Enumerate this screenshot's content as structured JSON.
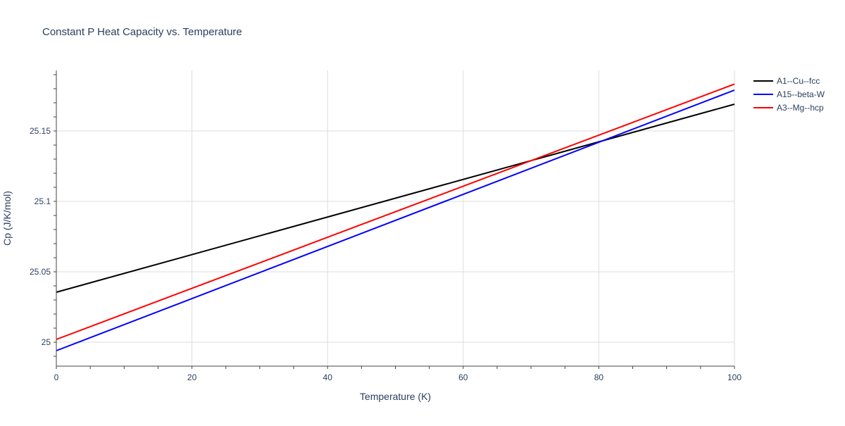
{
  "chart_data": {
    "type": "line",
    "title": "Constant P Heat Capacity vs. Temperature",
    "xlabel": "Temperature (K)",
    "ylabel": "Cp (J/K/mol)",
    "xlim": [
      0,
      100
    ],
    "ylim": [
      24.983,
      25.193
    ],
    "x_ticks": [
      0,
      20,
      40,
      60,
      80,
      100
    ],
    "x_tick_labels": [
      "0",
      "20",
      "40",
      "60",
      "80",
      "100"
    ],
    "y_ticks": [
      25,
      25.05,
      25.1,
      25.15
    ],
    "y_tick_labels": [
      "25",
      "25.05",
      "25.1",
      "25.15"
    ],
    "grid": true,
    "legend_position": "top-right",
    "series": [
      {
        "name": "A1--Cu--fcc",
        "color": "#000000",
        "x": [
          0,
          100
        ],
        "y": [
          25.0355,
          25.169
        ]
      },
      {
        "name": "A15--beta-W",
        "color": "#0000ff",
        "x": [
          0,
          100
        ],
        "y": [
          24.994,
          25.179
        ]
      },
      {
        "name": "A3--Mg--hcp",
        "color": "#ff0000",
        "x": [
          0,
          100
        ],
        "y": [
          25.002,
          25.1833
        ]
      }
    ]
  }
}
